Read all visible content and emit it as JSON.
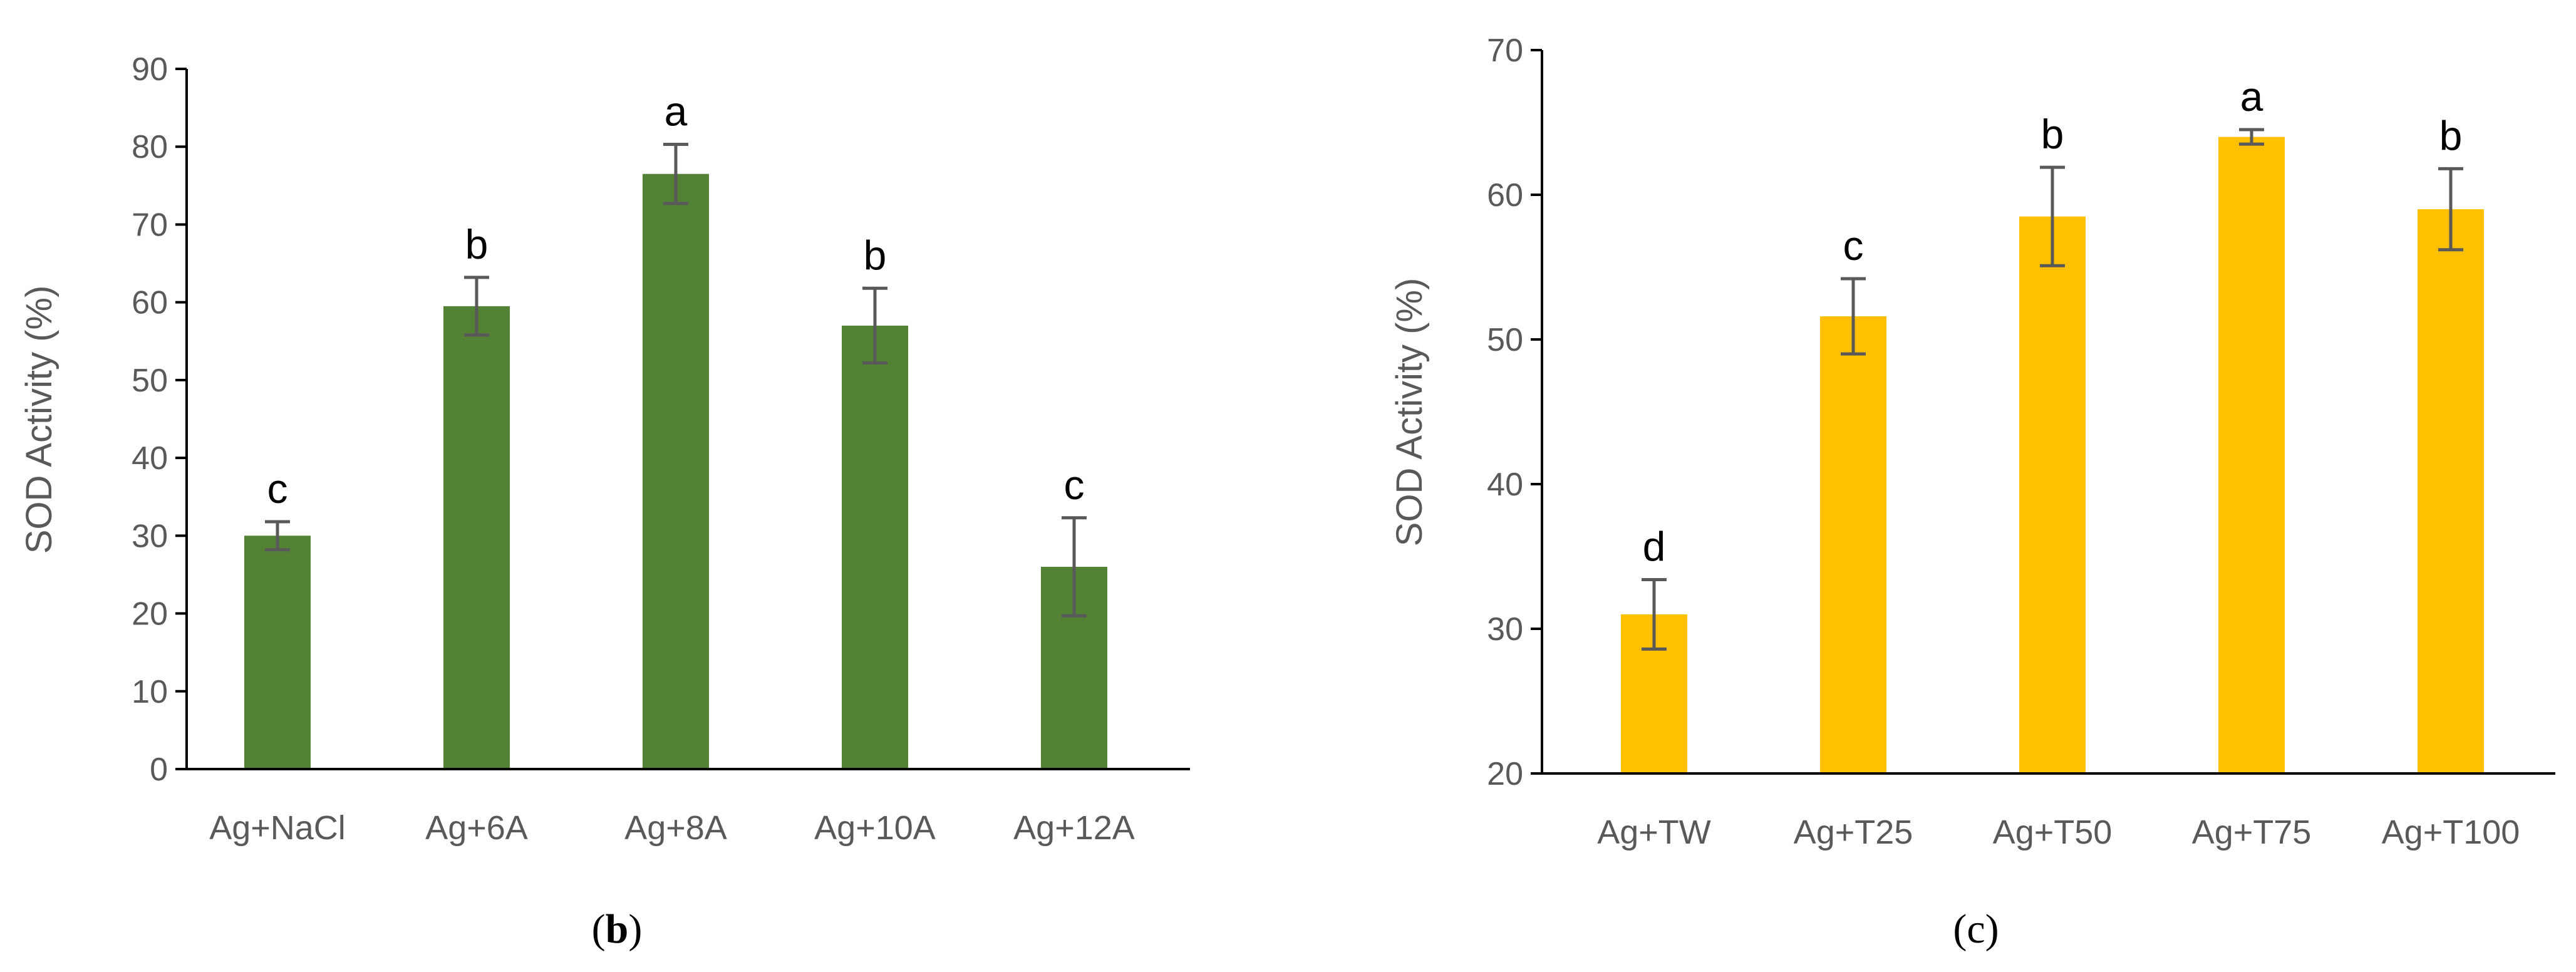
{
  "chart_data": [
    {
      "type": "bar",
      "panel": "b",
      "ylabel": "SOD Activity (%)",
      "ylim": [
        0,
        90
      ],
      "yticks": [
        0,
        10,
        20,
        30,
        40,
        50,
        60,
        70,
        80,
        90
      ],
      "categories": [
        "Ag+NaCl",
        "Ag+6A",
        "Ag+8A",
        "Ag+10A",
        "Ag+12A"
      ],
      "values": [
        30,
        59.5,
        76.5,
        57,
        26
      ],
      "errors": [
        1.8,
        3.7,
        3.8,
        4.8,
        6.3
      ],
      "significance": [
        "c",
        "b",
        "a",
        "b",
        "c"
      ],
      "bar_color": "#548235",
      "error_color": "#595959"
    },
    {
      "type": "bar",
      "panel": "c",
      "ylabel": "SOD Activity (%)",
      "ylim": [
        20,
        70
      ],
      "yticks": [
        20,
        30,
        40,
        50,
        60,
        70
      ],
      "categories": [
        "Ag+TW",
        "Ag+T25",
        "Ag+T50",
        "Ag+T75",
        "Ag+T100"
      ],
      "values": [
        31,
        51.6,
        58.5,
        64,
        59
      ],
      "errors": [
        2.4,
        2.6,
        3.4,
        0.5,
        2.8
      ],
      "significance": [
        "d",
        "c",
        "b",
        "a",
        "b"
      ],
      "bar_color": "#FFC000",
      "error_color": "#595959"
    }
  ],
  "panel_labels": {
    "b": {
      "open": "(",
      "letter": "b",
      "close": ")"
    },
    "c": {
      "open": "(",
      "letter": "c",
      "close": ")"
    }
  }
}
